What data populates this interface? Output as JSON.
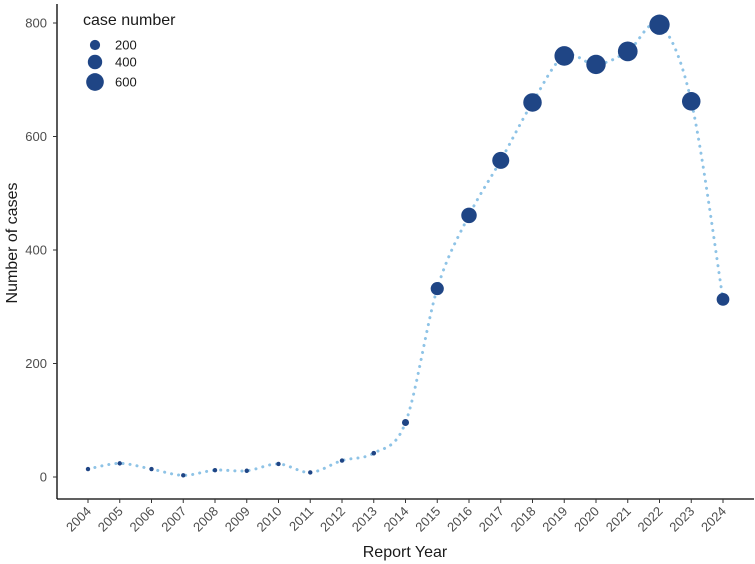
{
  "chart_data": {
    "type": "scatter",
    "xlabel": "Report Year",
    "ylabel": "Number of cases",
    "x": [
      "2004",
      "2005",
      "2006",
      "2007",
      "2008",
      "2009",
      "2010",
      "2011",
      "2012",
      "2013",
      "2014",
      "2015",
      "2016",
      "2017",
      "2018",
      "2019",
      "2020",
      "2021",
      "2022",
      "2023",
      "2024"
    ],
    "values": [
      14,
      24,
      14,
      3,
      12,
      11,
      23,
      8,
      29,
      42,
      96,
      332,
      461,
      558,
      660,
      742,
      727,
      750,
      797,
      662,
      313
    ],
    "ylim": [
      0,
      800
    ],
    "yticks": [
      0,
      200,
      400,
      600,
      800
    ],
    "line_style": "dotted",
    "line_color": "#8ec3e6",
    "point_color": "#1f4585",
    "grid": false,
    "legend": {
      "title": "case number",
      "position": "top-left",
      "entries": [
        {
          "label": "200",
          "value": 200
        },
        {
          "label": "400",
          "value": 400
        },
        {
          "label": "600",
          "value": 600
        }
      ]
    }
  }
}
